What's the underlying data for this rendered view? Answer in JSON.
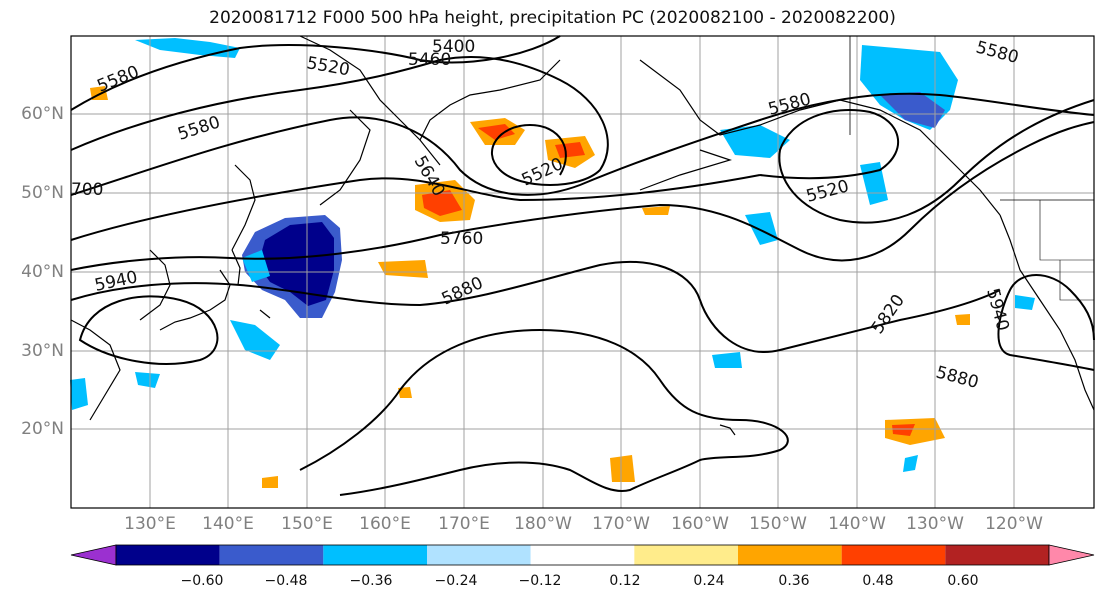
{
  "title": "2020081712 F000 500 hPa height, precipitation PC (2020082100 - 2020082200)",
  "lat_labels": [
    "60°N",
    "50°N",
    "40°N",
    "30°N",
    "20°N"
  ],
  "lon_labels": [
    "130°E",
    "140°E",
    "150°E",
    "160°E",
    "170°E",
    "180°W",
    "170°W",
    "160°W",
    "150°W",
    "140°W",
    "130°W",
    "120°W"
  ],
  "contour_labels": [
    "5400",
    "5460",
    "5520",
    "5580",
    "5580",
    "5580",
    "5580",
    "5640",
    "5520",
    "5520",
    "5760",
    "5880",
    "5940",
    "5820",
    "5940",
    "5880",
    "700"
  ],
  "colorbar": {
    "ticks": [
      "−0.60",
      "−0.48",
      "−0.36",
      "−0.24",
      "−0.12",
      "0.12",
      "0.24",
      "0.36",
      "0.48",
      "0.60"
    ],
    "colors": [
      "#9b30d0",
      "#00008b",
      "#3a5bcc",
      "#00bfff",
      "#b0e2ff",
      "#ffffff",
      "#ffec8b",
      "#ffa500",
      "#ff4000",
      "#b22222",
      "#ff88aa"
    ]
  },
  "colors": {
    "negative_strong": "#00008b",
    "negative_mid": "#3a5bcc",
    "negative_light": "#00bfff",
    "positive_mid": "#ffa500",
    "positive_strong": "#ff4000",
    "contour": "#000000",
    "grid": "#a0a0a0"
  }
}
